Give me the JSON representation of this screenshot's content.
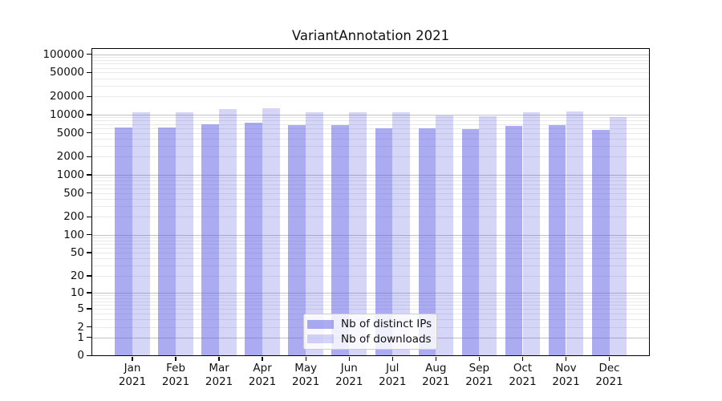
{
  "title": "VariantAnnotation 2021",
  "chart_data": {
    "type": "bar",
    "title": "VariantAnnotation 2021",
    "yscale": "symlog-like (position proportional to log10(value+1))",
    "grid": true,
    "legend_position": "lower center inside plot",
    "ylim": [
      0,
      127000
    ],
    "y_ticks": [
      0,
      1,
      2,
      5,
      10,
      20,
      50,
      100,
      200,
      500,
      1000,
      2000,
      5000,
      10000,
      20000,
      50000,
      100000
    ],
    "categories": [
      "Jan",
      "Feb",
      "Mar",
      "Apr",
      "May",
      "Jun",
      "Jul",
      "Aug",
      "Sep",
      "Oct",
      "Nov",
      "Dec"
    ],
    "year": "2021",
    "series": [
      {
        "name": "Nb of distinct IPs",
        "color": "rgba(87,87,228,0.5)",
        "values": [
          6200,
          6200,
          7000,
          7300,
          6700,
          6700,
          6000,
          6000,
          5700,
          6500,
          6800,
          5600
        ]
      },
      {
        "name": "Nb of downloads",
        "color": "rgba(87,87,228,0.25)",
        "values": [
          10800,
          11000,
          12300,
          12700,
          11100,
          11100,
          10900,
          9800,
          9300,
          10800,
          11400,
          9200
        ]
      }
    ]
  },
  "colors": {
    "bar_base": "#5757e4",
    "grid_major": "#c2c2c2",
    "grid_minor": "#e9e9e9",
    "axis": "#000000",
    "legend_border": "#cccccc",
    "background": "#ffffff"
  }
}
